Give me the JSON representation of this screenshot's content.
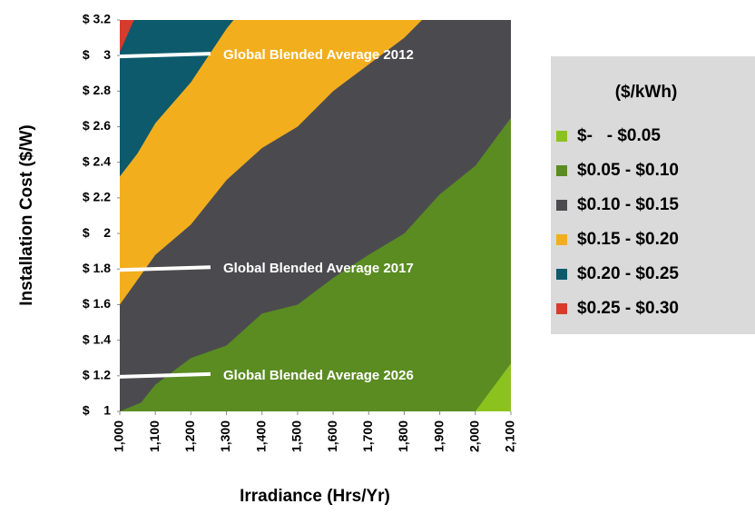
{
  "chart_data": {
    "type": "contour",
    "xlabel": "Irradiance (Hrs/Yr)",
    "ylabel": "Installation Cost ($/W)",
    "xlim": [
      1000,
      2100
    ],
    "ylim": [
      1,
      3.2
    ],
    "xticks": [
      {
        "value": 1000,
        "label": "1,000"
      },
      {
        "value": 1100,
        "label": "1,100"
      },
      {
        "value": 1200,
        "label": "1,200"
      },
      {
        "value": 1300,
        "label": "1,300"
      },
      {
        "value": 1400,
        "label": "1,400"
      },
      {
        "value": 1500,
        "label": "1,500"
      },
      {
        "value": 1600,
        "label": "1,600"
      },
      {
        "value": 1700,
        "label": "1,700"
      },
      {
        "value": 1800,
        "label": "1,800"
      },
      {
        "value": 1900,
        "label": "1,900"
      },
      {
        "value": 2000,
        "label": "2,000"
      },
      {
        "value": 2100,
        "label": "2,100"
      }
    ],
    "yticks": [
      {
        "value": 1,
        "label": "$    1"
      },
      {
        "value": 1.2,
        "label": "$ 1.2"
      },
      {
        "value": 1.4,
        "label": "$ 1.4"
      },
      {
        "value": 1.6,
        "label": "$ 1.6"
      },
      {
        "value": 1.8,
        "label": "$ 1.8"
      },
      {
        "value": 2,
        "label": "$    2"
      },
      {
        "value": 2.2,
        "label": "$ 2.2"
      },
      {
        "value": 2.4,
        "label": "$ 2.4"
      },
      {
        "value": 2.6,
        "label": "$ 2.6"
      },
      {
        "value": 2.8,
        "label": "$ 2.8"
      },
      {
        "value": 3,
        "label": "$    3"
      },
      {
        "value": 3.2,
        "label": "$ 3.2"
      }
    ],
    "legend": {
      "title": "($/kWh)",
      "items": [
        {
          "label": "$-   - $0.05",
          "color": "#8cc21e"
        },
        {
          "label": "$0.05 - $0.10",
          "color": "#5a8c22"
        },
        {
          "label": "$0.10 - $0.15",
          "color": "#4b4b4f"
        },
        {
          "label": "$0.15 - $0.20",
          "color": "#f3ae1e"
        },
        {
          "label": "$0.20 - $0.25",
          "color": "#0c5a6c"
        },
        {
          "label": "$0.25 - $0.30",
          "color": "#d53c2c"
        }
      ]
    },
    "boundaries": [
      {
        "x": [
          2000,
          2100
        ],
        "y": [
          1,
          1.27
        ]
      },
      {
        "x": [
          1000,
          1060,
          1100,
          1200,
          1300,
          1400,
          1500,
          1600,
          1700,
          1800,
          1900,
          2000,
          2100
        ],
        "y": [
          1,
          1.05,
          1.15,
          1.3,
          1.37,
          1.55,
          1.6,
          1.75,
          1.88,
          2,
          2.22,
          2.38,
          2.65
        ]
      },
      {
        "x": [
          1000,
          1100,
          1200,
          1300,
          1400,
          1500,
          1600,
          1700,
          1800,
          1850
        ],
        "y": [
          1.6,
          1.88,
          2.05,
          2.3,
          2.48,
          2.6,
          2.8,
          2.95,
          3.1,
          3.2
        ]
      },
      {
        "x": [
          1000,
          1050,
          1100,
          1200,
          1300,
          1320
        ],
        "y": [
          2.32,
          2.45,
          2.62,
          2.85,
          3.15,
          3.2
        ]
      },
      {
        "x": [
          1000,
          1040
        ],
        "y": [
          3.02,
          3.2
        ]
      }
    ],
    "annotations": [
      {
        "text": "Global Blended Average 2012",
        "y": 3
      },
      {
        "text": "Global Blended Average 2017",
        "y": 1.8
      },
      {
        "text": "Global Blended Average 2026",
        "y": 1.2
      }
    ]
  }
}
